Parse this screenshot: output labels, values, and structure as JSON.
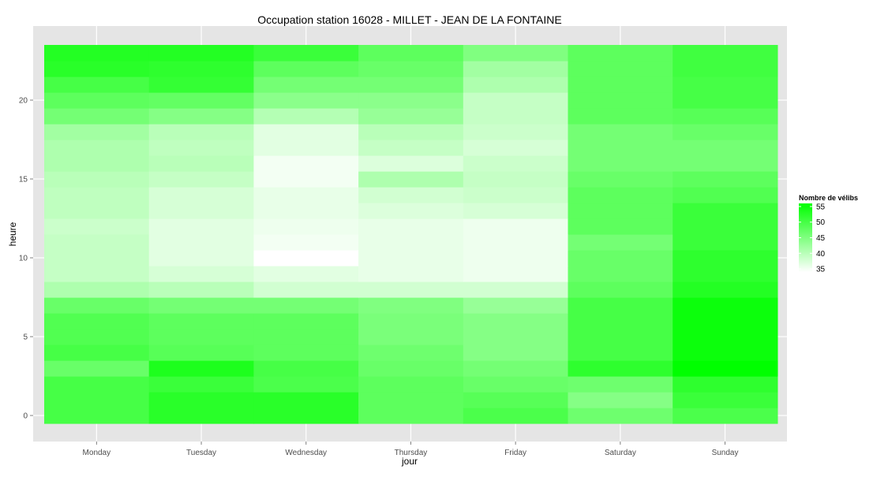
{
  "chart_data": {
    "type": "heatmap",
    "title": "Occupation station 16028 - MILLET - JEAN DE LA FONTAINE",
    "xlabel": "jour",
    "ylabel": "heure",
    "x_categories": [
      "Monday",
      "Tuesday",
      "Wednesday",
      "Thursday",
      "Friday",
      "Saturday",
      "Sunday"
    ],
    "y_range": [
      -0.5,
      23.5
    ],
    "y_ticks": [
      0,
      5,
      10,
      15,
      20
    ],
    "grid": true,
    "legend": {
      "title": "Nombre de vélibs",
      "placement": "right",
      "ticks": [
        55,
        50,
        45,
        40,
        35
      ],
      "range": [
        34,
        56
      ],
      "low_color": "#ffffff",
      "high_color": "#00ff00"
    },
    "values": [
      [
        50,
        52.5,
        52.5,
        48,
        49.5,
        46.5,
        49.5
      ],
      [
        50,
        52.5,
        52.5,
        48,
        48.5,
        44.5,
        51
      ],
      [
        50,
        51,
        49.5,
        48,
        47,
        46.5,
        52
      ],
      [
        47,
        53.5,
        50,
        47,
        46,
        52,
        56
      ],
      [
        50,
        48.5,
        48,
        46.5,
        44.5,
        50,
        55
      ],
      [
        49,
        48,
        48,
        45.5,
        44.5,
        50,
        55
      ],
      [
        49,
        48,
        48,
        45.5,
        44.5,
        50,
        55
      ],
      [
        47,
        46,
        46,
        45,
        43,
        50,
        55
      ],
      [
        41,
        40,
        38,
        38,
        38,
        48,
        53
      ],
      [
        39,
        37.5,
        36.5,
        36,
        35.5,
        47,
        52
      ],
      [
        39,
        36.5,
        34,
        36,
        35.5,
        47,
        52
      ],
      [
        39,
        36.5,
        35,
        36,
        35.5,
        46,
        51
      ],
      [
        38.5,
        36.5,
        35.5,
        36,
        35.5,
        48,
        51
      ],
      [
        39.5,
        37.5,
        36,
        37,
        37.5,
        48,
        51
      ],
      [
        39.5,
        37.5,
        36,
        38,
        38.5,
        48,
        49
      ],
      [
        40,
        39,
        35,
        41,
        39,
        47,
        48
      ],
      [
        41,
        40,
        35,
        37,
        38.5,
        46,
        46
      ],
      [
        41,
        39.5,
        36.5,
        39,
        37.5,
        46,
        46
      ],
      [
        42,
        40,
        36.5,
        40,
        38.5,
        46,
        47
      ],
      [
        46,
        44.5,
        40.5,
        43,
        39,
        48,
        48.5
      ],
      [
        48,
        47.5,
        44,
        44,
        39,
        48,
        50
      ],
      [
        50,
        51.5,
        46,
        46,
        41,
        48,
        50
      ],
      [
        52.5,
        52,
        48,
        47,
        42,
        48,
        50.5
      ],
      [
        53,
        53,
        51,
        48,
        45,
        48,
        50.5
      ]
    ]
  }
}
